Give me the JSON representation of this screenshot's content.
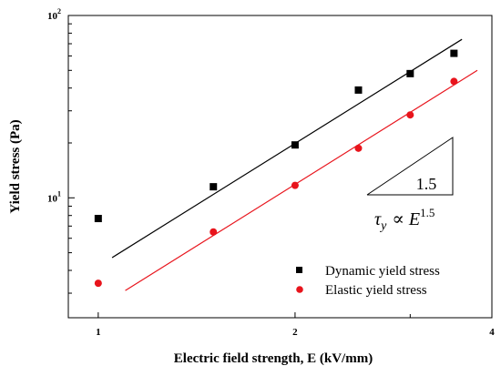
{
  "chart_data": {
    "type": "scatter",
    "xlabel": "Electric field strength, E (kV/mm)",
    "ylabel": "Yield stress (Pa)",
    "xscale": "log",
    "yscale": "log",
    "xlim": [
      0.9,
      4
    ],
    "ylim": [
      2.2,
      100
    ],
    "x_ticks_labeled": [
      {
        "value": 1,
        "label": "1"
      },
      {
        "value": 2,
        "label": "2"
      },
      {
        "value": 4,
        "label": "4"
      }
    ],
    "x_ticks_minor": [
      3
    ],
    "y_ticks_major": [
      {
        "value": 10,
        "base": "10",
        "exp": "1"
      },
      {
        "value": 100,
        "base": "10",
        "exp": "2"
      }
    ],
    "y_ticks_minor": [
      3,
      4,
      5,
      6,
      7,
      8,
      9,
      20,
      30,
      40,
      50,
      60,
      70,
      80,
      90
    ],
    "grid": false,
    "legend_position": "bottom-right",
    "series": [
      {
        "name": "Dynamic yield stress",
        "marker": "square",
        "color": "#000000",
        "x": [
          1.0,
          1.5,
          2.0,
          2.5,
          3.0,
          3.5
        ],
        "y": [
          7.7,
          11.5,
          19.5,
          39.0,
          48.0,
          62.0
        ],
        "fit": {
          "x": [
            1.05,
            3.6
          ],
          "y": [
            4.7,
            74.0
          ]
        }
      },
      {
        "name": "Elastic yield stress",
        "marker": "circle",
        "color": "#e8141c",
        "x": [
          1.0,
          1.5,
          2.0,
          2.5,
          3.0,
          3.5
        ],
        "y": [
          3.4,
          6.5,
          11.7,
          18.7,
          28.5,
          43.5
        ],
        "fit": {
          "x": [
            1.1,
            3.8
          ],
          "y": [
            3.1,
            50.0
          ]
        }
      }
    ],
    "annotation": {
      "slope_label": "1.5",
      "formula_lhs": "τ",
      "formula_sub": "y",
      "formula_mid": "∝ E",
      "formula_exp": "1.5"
    }
  }
}
